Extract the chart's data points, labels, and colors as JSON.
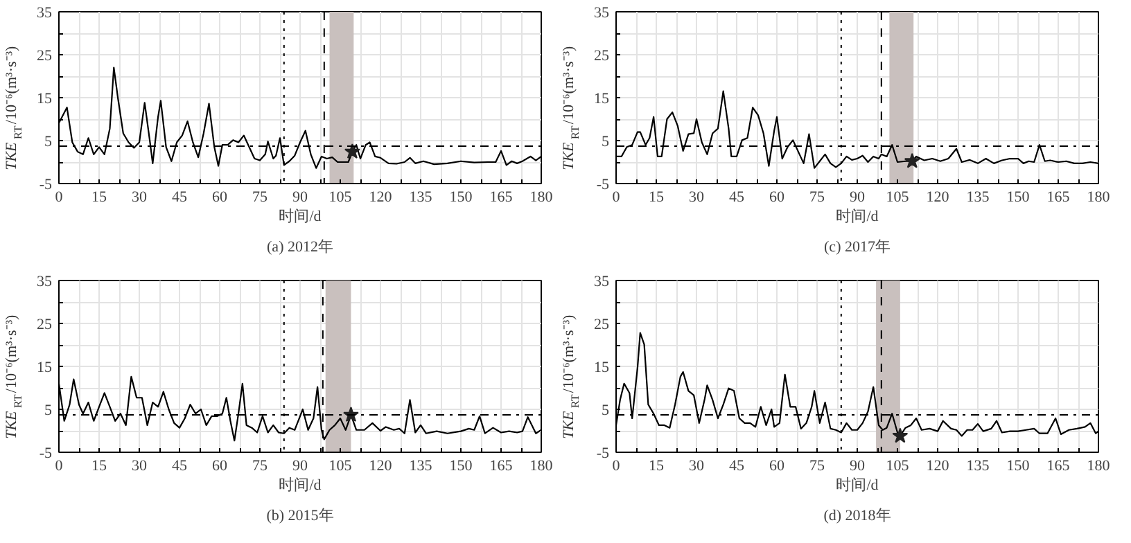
{
  "chart_data": [
    {
      "type": "line",
      "title": "(a) 2012年",
      "xlabel": "时间/d",
      "ylabel": "TKE$_{RT}$/10⁻⁶(m³·s⁻³)",
      "xlim": [
        0,
        180
      ],
      "ylim": [
        -5,
        35
      ],
      "xticks": [
        0,
        {
          "value": 7.5,
          "label": null
        },
        15,
        {
          "value": 22.5,
          "label": null
        },
        30,
        {
          "value": 37.5,
          "label": null
        },
        45,
        {
          "value": 52.5,
          "label": null
        },
        60,
        {
          "value": 67.5,
          "label": null
        },
        75,
        {
          "value": 82.5,
          "label": null
        },
        90,
        {
          "value": 97.5,
          "label": null
        },
        105,
        {
          "value": 112.5,
          "label": null
        },
        120,
        {
          "value": 127.5,
          "label": null
        },
        135,
        {
          "value": 142.5,
          "label": null
        },
        150,
        {
          "value": 157.5,
          "label": null
        },
        165,
        {
          "value": 172.5,
          "label": null
        },
        180
      ],
      "yticks": [
        -5,
        {
          "value": 0,
          "label": null
        },
        5,
        {
          "value": 10,
          "label": null
        },
        15,
        {
          "value": 20,
          "label": null
        },
        25,
        {
          "value": 30,
          "label": null
        },
        35
      ],
      "grid": true,
      "series": [
        {
          "color": "#000000",
          "line_style": "solid",
          "x": [
            0,
            3,
            5,
            7,
            9,
            11,
            13,
            15,
            17,
            19,
            20.5,
            22,
            24,
            26,
            28,
            30,
            32,
            34,
            35,
            37,
            38,
            40,
            42,
            44,
            46,
            48,
            50,
            52,
            54,
            56,
            58,
            59.5,
            61,
            63,
            65,
            67,
            69,
            71,
            73,
            75,
            77,
            78,
            80,
            81,
            82.5,
            84,
            86,
            88,
            90,
            92,
            94,
            96,
            98,
            100,
            102,
            104,
            106,
            108,
            109.5,
            111,
            112.5,
            114.5,
            116,
            118,
            120,
            123,
            126,
            129,
            131,
            133,
            136,
            140,
            145,
            150,
            155,
            160,
            163,
            165,
            167,
            169,
            171,
            173,
            176,
            178,
            180
          ],
          "values": [
            9.1,
            12.7,
            4.6,
            2.4,
            1.8,
            5.6,
            1.8,
            3.5,
            1.8,
            7.8,
            22,
            15,
            6.7,
            4.6,
            3.3,
            4.6,
            13.8,
            4.6,
            -0.3,
            10.5,
            14.3,
            3.5,
            0.2,
            4.6,
            6.2,
            9.5,
            4.6,
            1.1,
            6.7,
            13.6,
            3.5,
            -0.9,
            4.0,
            4.0,
            5.1,
            4.6,
            6.2,
            3.5,
            0.8,
            0.4,
            1.8,
            4.8,
            0.8,
            1.5,
            5.6,
            -0.7,
            0.2,
            1.5,
            4.6,
            7.3,
            1.8,
            -1.4,
            1.3,
            0.8,
            1.1,
            0,
            0,
            0,
            2.4,
            4.0,
            0.8,
            4.0,
            4.6,
            1.3,
            1.0,
            -0.3,
            -0.4,
            0,
            1.0,
            -0.3,
            0.2,
            -0.5,
            -0.3,
            0.2,
            -0.1,
            0,
            0,
            2.6,
            -0.7,
            0.2,
            -0.3,
            0.2,
            1.3,
            0.4,
            1.3
          ]
        },
        {
          "type": "scatter",
          "marker": "star",
          "color": "#222222",
          "x": [
            109.5
          ],
          "values": [
            2.4
          ]
        }
      ],
      "ref_lines": [
        {
          "axis": "x",
          "value": 84,
          "line_style": "dotted",
          "color": "#000000"
        },
        {
          "axis": "x",
          "value": 99,
          "line_style": "dashed",
          "color": "#000000"
        },
        {
          "axis": "y",
          "value": 3.7,
          "line_style": "dashdot",
          "color": "#000000"
        }
      ],
      "bands": [
        {
          "axis": "x",
          "from": 101,
          "to": 110,
          "color": "#c9c0be"
        }
      ]
    },
    {
      "type": "line",
      "title": "(c) 2017年",
      "xlabel": "时间/d",
      "ylabel": "TKE$_{RT}$/10⁻⁶(m³·s⁻³)",
      "xlim": [
        0,
        180
      ],
      "ylim": [
        -5,
        35
      ],
      "xticks": [
        0,
        {
          "value": 7.5,
          "label": null
        },
        15,
        {
          "value": 22.5,
          "label": null
        },
        30,
        {
          "value": 37.5,
          "label": null
        },
        45,
        {
          "value": 52.5,
          "label": null
        },
        60,
        {
          "value": 67.5,
          "label": null
        },
        75,
        {
          "value": 82.5,
          "label": null
        },
        90,
        {
          "value": 97.5,
          "label": null
        },
        105,
        {
          "value": 112.5,
          "label": null
        },
        120,
        {
          "value": 127.5,
          "label": null
        },
        135,
        {
          "value": 142.5,
          "label": null
        },
        150,
        {
          "value": 157.5,
          "label": null
        },
        165,
        {
          "value": 172.5,
          "label": null
        },
        180
      ],
      "yticks": [
        -5,
        {
          "value": 0,
          "label": null
        },
        5,
        {
          "value": 10,
          "label": null
        },
        15,
        {
          "value": 20,
          "label": null
        },
        25,
        {
          "value": 30,
          "label": null
        },
        35
      ],
      "grid": true,
      "series": [
        {
          "color": "#000000",
          "line_style": "solid",
          "x": [
            0,
            2,
            4,
            6,
            8,
            9,
            11,
            12.5,
            14,
            15.5,
            17,
            19,
            21,
            23,
            25,
            27,
            29,
            30,
            32,
            34,
            36,
            38,
            40,
            42,
            43,
            45,
            47,
            49,
            51,
            53,
            55,
            57,
            59,
            60,
            62,
            64,
            66,
            68,
            70,
            72,
            74,
            76,
            78,
            80,
            82,
            84,
            86,
            88,
            90,
            92,
            94,
            96,
            98,
            99,
            101,
            103,
            105,
            108,
            110.5,
            112,
            115,
            118,
            121,
            124,
            127,
            129,
            132,
            135,
            138,
            141,
            144,
            147,
            150,
            152,
            154,
            156,
            158,
            160,
            162,
            165,
            168,
            171,
            174,
            177,
            180
          ],
          "values": [
            1.3,
            1.3,
            3.5,
            4,
            7,
            7,
            4,
            5.6,
            10.5,
            1.3,
            1.3,
            10,
            11.6,
            8.4,
            2.6,
            6.5,
            6.7,
            10,
            4.6,
            1.8,
            6.7,
            7.8,
            16.5,
            7.8,
            1.3,
            1.3,
            5.1,
            5.6,
            12.7,
            10.9,
            6.7,
            -0.9,
            7.3,
            10.5,
            0.8,
            3.5,
            5.1,
            2.4,
            -0.3,
            6.5,
            -1.4,
            0.2,
            1.8,
            -0.3,
            -1.2,
            -0.3,
            1.3,
            0.5,
            0.8,
            1.5,
            0,
            1.3,
            0.8,
            1.8,
            1.3,
            4,
            0,
            0.2,
            0.2,
            1.3,
            0.4,
            0.8,
            0.2,
            0.8,
            3.1,
            0,
            0.5,
            -0.3,
            0.8,
            -0.3,
            0.4,
            0.8,
            0.8,
            -0.3,
            0.2,
            0,
            4,
            0.2,
            0.4,
            0,
            0.2,
            -0.3,
            -0.3,
            0,
            -0.3
          ]
        },
        {
          "type": "scatter",
          "marker": "star",
          "color": "#222222",
          "x": [
            110.5
          ],
          "values": [
            0.2
          ]
        }
      ],
      "ref_lines": [
        {
          "axis": "x",
          "value": 84,
          "line_style": "dotted",
          "color": "#000000"
        },
        {
          "axis": "x",
          "value": 99,
          "line_style": "dashed",
          "color": "#000000"
        },
        {
          "axis": "y",
          "value": 3.7,
          "line_style": "dashdot",
          "color": "#000000"
        }
      ],
      "bands": [
        {
          "axis": "x",
          "from": 102,
          "to": 111,
          "color": "#c9c0be"
        }
      ]
    },
    {
      "type": "line",
      "title": "(b) 2015年",
      "xlabel": "时间/d",
      "ylabel": "TKE$_{RT}$/10⁻⁶(m³·s⁻³)",
      "xlim": [
        0,
        180
      ],
      "ylim": [
        -5,
        35
      ],
      "xticks": [
        0,
        {
          "value": 7.5,
          "label": null
        },
        15,
        {
          "value": 22.5,
          "label": null
        },
        30,
        {
          "value": 37.5,
          "label": null
        },
        45,
        {
          "value": 52.5,
          "label": null
        },
        60,
        {
          "value": 67.5,
          "label": null
        },
        75,
        {
          "value": 82.5,
          "label": null
        },
        90,
        {
          "value": 97.5,
          "label": null
        },
        105,
        {
          "value": 112.5,
          "label": null
        },
        120,
        {
          "value": 127.5,
          "label": null
        },
        135,
        {
          "value": 142.5,
          "label": null
        },
        150,
        {
          "value": 157.5,
          "label": null
        },
        165,
        {
          "value": 172.5,
          "label": null
        },
        180
      ],
      "yticks": [
        -5,
        {
          "value": 0,
          "label": null
        },
        5,
        {
          "value": 10,
          "label": null
        },
        15,
        {
          "value": 20,
          "label": null
        },
        25,
        {
          "value": 30,
          "label": null
        },
        35
      ],
      "grid": true,
      "series": [
        {
          "color": "#000000",
          "line_style": "solid",
          "x": [
            0,
            2,
            4,
            5.5,
            7.5,
            9,
            11,
            13,
            15,
            17,
            19,
            21,
            23,
            25,
            27,
            29,
            31,
            33,
            35,
            37,
            39,
            41,
            43,
            45,
            47,
            49,
            51,
            53,
            55,
            57,
            59,
            61,
            62.5,
            64,
            65.5,
            67,
            68.5,
            70,
            72,
            74,
            76,
            78,
            80,
            82,
            84,
            86,
            88,
            89,
            91,
            93,
            95,
            96.5,
            98,
            99,
            101,
            103,
            105,
            107,
            109,
            111,
            114,
            117,
            120,
            122,
            125,
            127,
            129,
            131,
            133,
            135,
            137,
            141,
            145,
            150,
            153,
            155,
            157,
            159,
            162,
            165,
            168,
            171,
            173,
            175,
            178,
            180
          ],
          "values": [
            11,
            2.3,
            6.1,
            12,
            6.1,
            4,
            6.6,
            2.3,
            5.6,
            8.8,
            5.6,
            2.3,
            4,
            1.3,
            12.6,
            7.7,
            7.7,
            1.3,
            6.6,
            5.6,
            9.1,
            5,
            1.8,
            0.7,
            2.9,
            6.1,
            4,
            5,
            1.3,
            3.4,
            3.4,
            4,
            7.7,
            2.3,
            -2.3,
            4,
            11,
            1.3,
            0.7,
            -0.4,
            3.4,
            -0.4,
            1.3,
            -0.4,
            -0.6,
            0.7,
            0.2,
            1.8,
            5,
            0.2,
            2.9,
            10.2,
            0.2,
            -2,
            0.2,
            1.3,
            2.9,
            0.2,
            3.7,
            0.2,
            0.2,
            1.8,
            0,
            0.9,
            0.2,
            0.5,
            -0.6,
            7.2,
            -0.4,
            1.3,
            -0.6,
            -0.1,
            -0.6,
            -0.1,
            0.5,
            0.2,
            3.4,
            -0.6,
            0.7,
            -0.4,
            -0.1,
            -0.4,
            -0.1,
            3.2,
            -0.6,
            0.2
          ]
        },
        {
          "type": "scatter",
          "marker": "star",
          "color": "#222222",
          "x": [
            109
          ],
          "values": [
            3.7
          ]
        }
      ],
      "ref_lines": [
        {
          "axis": "x",
          "value": 84,
          "line_style": "dotted",
          "color": "#000000"
        },
        {
          "axis": "x",
          "value": 98.5,
          "line_style": "dashed",
          "color": "#000000"
        },
        {
          "axis": "y",
          "value": 3.7,
          "line_style": "dashdot",
          "color": "#000000"
        }
      ],
      "bands": [
        {
          "axis": "x",
          "from": 99.5,
          "to": 109,
          "color": "#c9c0be"
        }
      ]
    },
    {
      "type": "line",
      "title": "(d) 2018年",
      "xlabel": "时间/d",
      "ylabel": "TKE$_{RT}$/10⁻⁶(m³·s⁻³)",
      "xlim": [
        0,
        180
      ],
      "ylim": [
        -5,
        35
      ],
      "xticks": [
        0,
        {
          "value": 7.5,
          "label": null
        },
        15,
        {
          "value": 22.5,
          "label": null
        },
        30,
        {
          "value": 37.5,
          "label": null
        },
        45,
        {
          "value": 52.5,
          "label": null
        },
        60,
        {
          "value": 67.5,
          "label": null
        },
        75,
        {
          "value": 82.5,
          "label": null
        },
        90,
        {
          "value": 97.5,
          "label": null
        },
        105,
        {
          "value": 112.5,
          "label": null
        },
        120,
        {
          "value": 127.5,
          "label": null
        },
        135,
        {
          "value": 142.5,
          "label": null
        },
        150,
        {
          "value": 157.5,
          "label": null
        },
        165,
        {
          "value": 172.5,
          "label": null
        },
        180
      ],
      "yticks": [
        -5,
        {
          "value": 0,
          "label": null
        },
        5,
        {
          "value": 10,
          "label": null
        },
        15,
        {
          "value": 20,
          "label": null
        },
        25,
        {
          "value": 30,
          "label": null
        },
        35
      ],
      "grid": true,
      "series": [
        {
          "color": "#000000",
          "line_style": "solid",
          "x": [
            0,
            1.5,
            3,
            5,
            6,
            8,
            9,
            10.5,
            12,
            14,
            16,
            18,
            20,
            22,
            24,
            25,
            27,
            29,
            31,
            33,
            34,
            36,
            38,
            40,
            42,
            44,
            46,
            48,
            50,
            52,
            54,
            56,
            58,
            59,
            61,
            63,
            65,
            67,
            69,
            71,
            73,
            74,
            76,
            78,
            80,
            82,
            84,
            86,
            88,
            90,
            92,
            94,
            96,
            98,
            99.5,
            101,
            103,
            105,
            106,
            108,
            110,
            112,
            114,
            117,
            120,
            122,
            125,
            127,
            129,
            131,
            133,
            135,
            137,
            140,
            142,
            144,
            147,
            150,
            153,
            156,
            158,
            161,
            164,
            166,
            169,
            172,
            175,
            177,
            179,
            180
          ],
          "values": [
            1.3,
            7.2,
            11,
            8.8,
            2.9,
            14.7,
            22.8,
            20.1,
            6.1,
            4,
            1.3,
            1.3,
            0.7,
            6.1,
            12.6,
            13.7,
            9.3,
            8.3,
            1.8,
            7.2,
            10.6,
            7.2,
            2.9,
            6.1,
            9.9,
            9.3,
            2.9,
            1.8,
            1.8,
            0.9,
            5.6,
            1.3,
            5,
            0.9,
            1.8,
            13.1,
            5.6,
            5.6,
            0.5,
            1.8,
            5.6,
            9.3,
            1.8,
            6.6,
            0.5,
            0.2,
            -0.4,
            1.8,
            0.2,
            0.2,
            1.8,
            4.5,
            10.2,
            1.3,
            0.2,
            0.7,
            4,
            -0.4,
            -1.2,
            0.7,
            1.3,
            2.9,
            0.2,
            0.5,
            -0.1,
            2.3,
            0.5,
            0.2,
            -1.2,
            0.2,
            0.2,
            1.6,
            -0.1,
            0.5,
            2.3,
            -0.4,
            -0.1,
            -0.1,
            0.2,
            0.5,
            -0.6,
            -0.6,
            2.9,
            -0.8,
            0.2,
            0.5,
            0.9,
            1.8,
            -0.6,
            -0.1
          ]
        },
        {
          "type": "scatter",
          "marker": "star",
          "color": "#222222",
          "x": [
            106
          ],
          "values": [
            -1.2
          ]
        }
      ],
      "ref_lines": [
        {
          "axis": "x",
          "value": 84,
          "line_style": "dotted",
          "color": "#000000"
        },
        {
          "axis": "x",
          "value": 99,
          "line_style": "dashed",
          "color": "#000000"
        },
        {
          "axis": "y",
          "value": 3.7,
          "line_style": "dashdot",
          "color": "#000000"
        }
      ],
      "bands": [
        {
          "axis": "x",
          "from": 97,
          "to": 106,
          "color": "#c9c0be"
        }
      ]
    }
  ]
}
